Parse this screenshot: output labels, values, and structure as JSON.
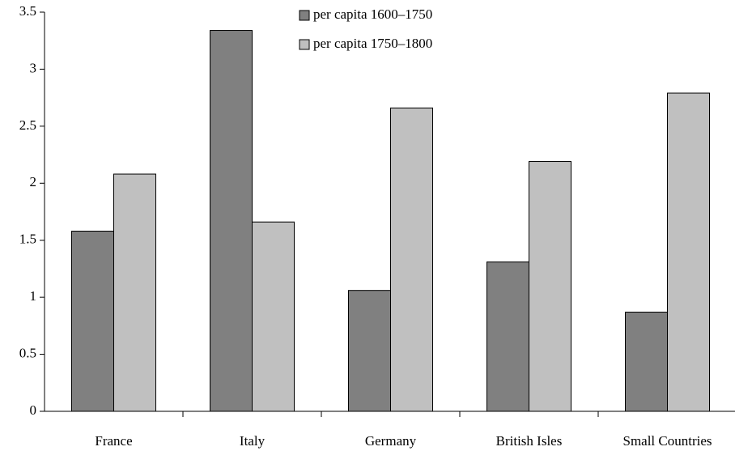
{
  "chart_data": {
    "type": "bar",
    "categories": [
      "France",
      "Italy",
      "Germany",
      "British Isles",
      "Small Countries"
    ],
    "series": [
      {
        "name": "per capita 1600–1750",
        "color": "#808080",
        "values": [
          1.58,
          3.34,
          1.06,
          1.31,
          0.87
        ]
      },
      {
        "name": "per capita 1750–1800",
        "color": "#c0c0c0",
        "values": [
          2.08,
          1.66,
          2.66,
          2.19,
          2.79
        ]
      }
    ],
    "ylim": [
      0,
      3.5
    ],
    "yticks": [
      0,
      0.5,
      1,
      1.5,
      2,
      2.5,
      3,
      3.5
    ]
  }
}
